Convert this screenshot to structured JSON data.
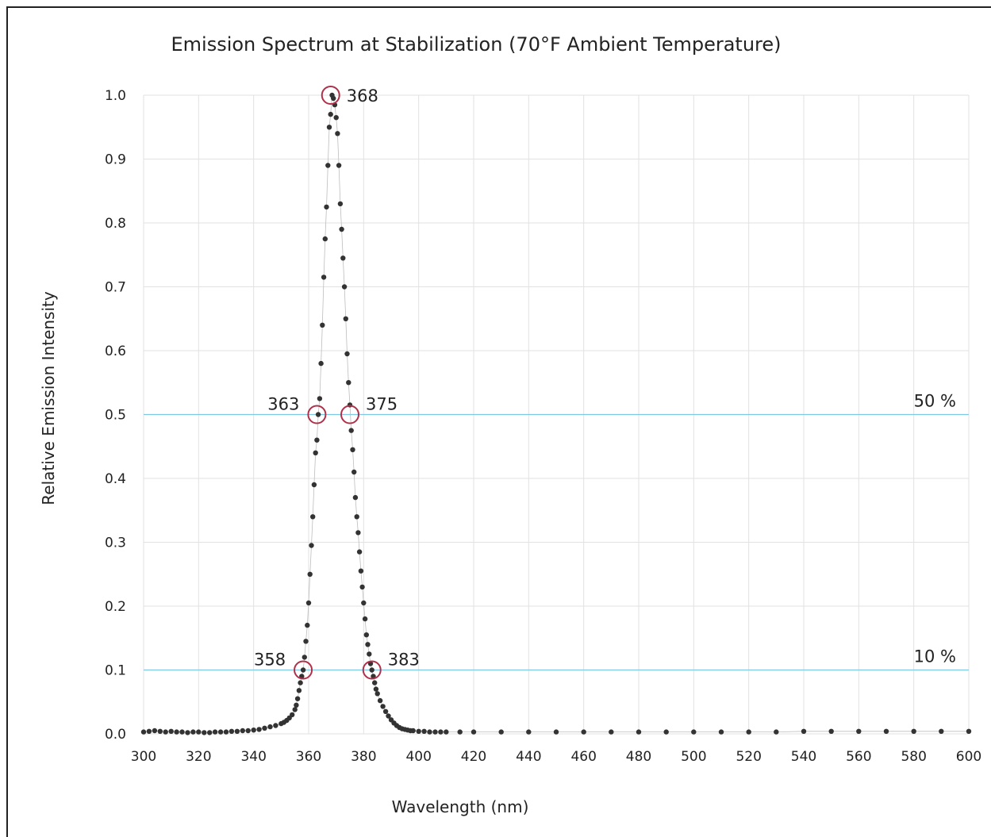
{
  "chart_data": {
    "type": "scatter",
    "title": "Emission Spectrum at Stabilization (70°F Ambient Temperature)",
    "xlabel": "Wavelength (nm)",
    "ylabel": "Relative Emission Intensity",
    "xlim": [
      300,
      600
    ],
    "ylim": [
      0.0,
      1.0
    ],
    "x_ticks": [
      300,
      320,
      340,
      360,
      380,
      400,
      420,
      440,
      460,
      480,
      500,
      520,
      540,
      560,
      580,
      600
    ],
    "y_ticks": [
      0.0,
      0.1,
      0.2,
      0.3,
      0.4,
      0.5,
      0.6,
      0.7,
      0.8,
      0.9,
      1.0
    ],
    "x_tick_labels": [
      "300",
      "320",
      "340",
      "360",
      "380",
      "400",
      "420",
      "440",
      "460",
      "480",
      "500",
      "520",
      "540",
      "560",
      "580",
      "600"
    ],
    "y_tick_labels": [
      "0.0",
      "0.1",
      "0.2",
      "0.3",
      "0.4",
      "0.5",
      "0.6",
      "0.7",
      "0.8",
      "0.9",
      "1.0"
    ],
    "grid": true,
    "colors": {
      "points": "#333333",
      "reference_lines": "#7ec8e3",
      "markers": "#b0304a",
      "grid": "#e2e2e2"
    },
    "reference_lines": [
      {
        "y": 0.5,
        "label": "50 %"
      },
      {
        "y": 0.1,
        "label": "10 %"
      }
    ],
    "annotations": [
      {
        "x": 368,
        "y": 1.0,
        "label": "368",
        "side": "right"
      },
      {
        "x": 363,
        "y": 0.5,
        "label": "363",
        "side": "left"
      },
      {
        "x": 375,
        "y": 0.5,
        "label": "375",
        "side": "right"
      },
      {
        "x": 358,
        "y": 0.1,
        "label": "358",
        "side": "left"
      },
      {
        "x": 383,
        "y": 0.1,
        "label": "383",
        "side": "right"
      }
    ],
    "series": [
      {
        "x": [
          300,
          302,
          304,
          306,
          308,
          310,
          312,
          314,
          316,
          318,
          320,
          322,
          324,
          326,
          328,
          330,
          332,
          334,
          336,
          338,
          340,
          342,
          344,
          346,
          348,
          350,
          351,
          352,
          353,
          354,
          355,
          355.5,
          356,
          356.5,
          357,
          357.5,
          358,
          358.5,
          359,
          359.5,
          360,
          360.5,
          361,
          361.5,
          362,
          362.5,
          363,
          363.5,
          364,
          364.5,
          365,
          365.5,
          366,
          366.5,
          367,
          367.5,
          368,
          368.5,
          369,
          369.5,
          370,
          370.5,
          371,
          371.5,
          372,
          372.5,
          373,
          373.5,
          374,
          374.5,
          375,
          375.5,
          376,
          376.5,
          377,
          377.5,
          378,
          378.5,
          379,
          379.5,
          380,
          380.5,
          381,
          381.5,
          382,
          382.5,
          383,
          383.5,
          384,
          384.5,
          385,
          386,
          387,
          388,
          389,
          390,
          391,
          392,
          393,
          394,
          395,
          396,
          397,
          398,
          400,
          402,
          404,
          406,
          408,
          410,
          415,
          420,
          430,
          440,
          450,
          460,
          470,
          480,
          490,
          500,
          510,
          520,
          530,
          540,
          550,
          560,
          570,
          580,
          590,
          600
        ],
        "y": [
          0.003,
          0.004,
          0.005,
          0.004,
          0.003,
          0.004,
          0.003,
          0.003,
          0.002,
          0.003,
          0.003,
          0.002,
          0.002,
          0.003,
          0.003,
          0.003,
          0.004,
          0.004,
          0.005,
          0.005,
          0.006,
          0.007,
          0.009,
          0.011,
          0.013,
          0.016,
          0.018,
          0.021,
          0.025,
          0.03,
          0.038,
          0.045,
          0.055,
          0.068,
          0.08,
          0.09,
          0.1,
          0.12,
          0.145,
          0.17,
          0.205,
          0.25,
          0.295,
          0.34,
          0.39,
          0.44,
          0.46,
          0.5,
          0.525,
          0.58,
          0.64,
          0.715,
          0.775,
          0.825,
          0.89,
          0.95,
          0.97,
          1.0,
          0.995,
          0.985,
          0.965,
          0.94,
          0.89,
          0.83,
          0.79,
          0.745,
          0.7,
          0.65,
          0.595,
          0.55,
          0.515,
          0.475,
          0.445,
          0.41,
          0.37,
          0.34,
          0.315,
          0.285,
          0.255,
          0.23,
          0.205,
          0.18,
          0.155,
          0.14,
          0.125,
          0.11,
          0.1,
          0.09,
          0.08,
          0.07,
          0.063,
          0.052,
          0.043,
          0.035,
          0.028,
          0.022,
          0.017,
          0.013,
          0.01,
          0.008,
          0.007,
          0.006,
          0.005,
          0.005,
          0.004,
          0.004,
          0.003,
          0.003,
          0.003,
          0.003,
          0.003,
          0.003,
          0.003,
          0.003,
          0.003,
          0.003,
          0.003,
          0.003,
          0.003,
          0.003,
          0.003,
          0.003,
          0.003,
          0.004,
          0.004,
          0.004,
          0.004,
          0.004,
          0.004,
          0.004
        ]
      }
    ]
  }
}
